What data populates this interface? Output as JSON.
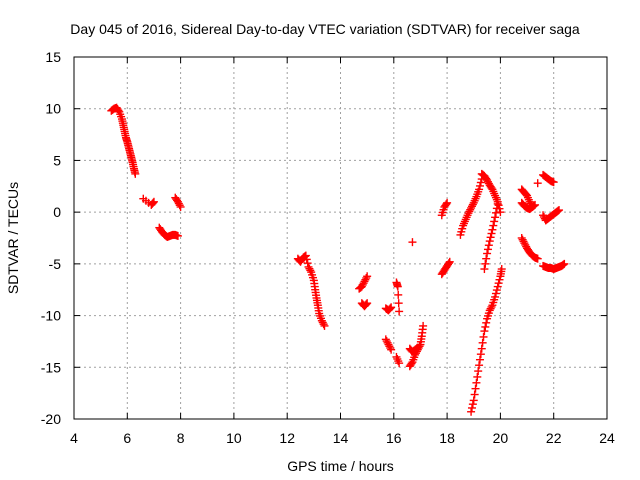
{
  "chart_data": {
    "type": "scatter",
    "title": "Day 045 of 2016, Sidereal Day-to-day VTEC variation (SDTVAR) for receiver saga",
    "xlabel": "GPS time / hours",
    "ylabel": "SDTVAR / TECUs",
    "xlim": [
      4,
      24
    ],
    "ylim": [
      -20,
      15
    ],
    "xticks": [
      4,
      6,
      8,
      10,
      12,
      14,
      16,
      18,
      20,
      22,
      24
    ],
    "yticks": [
      -20,
      -15,
      -10,
      -5,
      0,
      5,
      10,
      15
    ],
    "grid": true,
    "marker": "+",
    "series_color": "#ff0000",
    "segments": [
      {
        "x": [
          5.4,
          5.5,
          5.6,
          5.7,
          5.8,
          5.85,
          5.9,
          5.95,
          6.0,
          6.05,
          6.1,
          6.15,
          6.2,
          6.25,
          6.3
        ],
        "y": [
          9.8,
          10.0,
          10.1,
          9.7,
          9.0,
          8.4,
          7.8,
          7.2,
          6.8,
          6.3,
          5.8,
          5.3,
          4.8,
          4.2,
          3.7
        ]
      },
      {
        "x": [
          6.6,
          6.9,
          7.0
        ],
        "y": [
          1.3,
          0.7,
          1.0
        ]
      },
      {
        "x": [
          7.2,
          7.3,
          7.4,
          7.5,
          7.6,
          7.7,
          7.8,
          7.9
        ],
        "y": [
          -1.5,
          -1.9,
          -2.2,
          -2.4,
          -2.3,
          -2.2,
          -2.2,
          -2.3
        ]
      },
      {
        "x": [
          7.8,
          7.9,
          8.0
        ],
        "y": [
          1.4,
          1.0,
          0.5
        ]
      },
      {
        "x": [
          12.4,
          12.5,
          12.6,
          12.7,
          12.8,
          12.9,
          13.0,
          13.05,
          13.1,
          13.15,
          13.2,
          13.3,
          13.4
        ],
        "y": [
          -4.5,
          -4.8,
          -4.4,
          -4.2,
          -5.3,
          -5.8,
          -6.6,
          -7.5,
          -8.3,
          -9.0,
          -9.8,
          -10.5,
          -11.0
        ]
      },
      {
        "x": [
          14.7,
          14.8,
          14.9,
          15.0
        ],
        "y": [
          -7.4,
          -7.2,
          -6.7,
          -6.2
        ]
      },
      {
        "x": [
          14.8,
          14.9,
          15.0
        ],
        "y": [
          -8.8,
          -9.1,
          -8.8
        ]
      },
      {
        "x": [
          15.7,
          15.8,
          15.9
        ],
        "y": [
          -9.3,
          -9.5,
          -9.2
        ]
      },
      {
        "x": [
          15.7,
          15.8,
          15.9
        ],
        "y": [
          -12.3,
          -12.8,
          -13.3
        ]
      },
      {
        "x": [
          16.1,
          16.15,
          16.2
        ],
        "y": [
          -6.8,
          -7.2,
          -9.6
        ]
      },
      {
        "x": [
          16.1,
          16.2
        ],
        "y": [
          -14.0,
          -14.6
        ]
      },
      {
        "x": [
          16.7
        ],
        "y": [
          -2.9
        ]
      },
      {
        "x": [
          16.6,
          16.7,
          16.8,
          16.9,
          17.0,
          17.05,
          17.1
        ],
        "y": [
          -14.9,
          -14.5,
          -13.8,
          -13.3,
          -12.8,
          -12.0,
          -11.0
        ]
      },
      {
        "x": [
          16.6,
          16.7,
          16.8,
          16.9
        ],
        "y": [
          -13.2,
          -13.5,
          -13.3,
          -13.1
        ]
      },
      {
        "x": [
          17.8,
          17.9,
          18.0,
          18.1
        ],
        "y": [
          -6.0,
          -5.6,
          -5.2,
          -4.8
        ]
      },
      {
        "x": [
          17.8,
          17.9,
          18.0
        ],
        "y": [
          -0.3,
          0.5,
          0.9
        ]
      },
      {
        "x": [
          18.5,
          18.6,
          18.7,
          18.8,
          18.9,
          19.0,
          19.1,
          19.2,
          19.3
        ],
        "y": [
          -2.2,
          -1.3,
          -0.7,
          -0.1,
          0.4,
          0.9,
          1.5,
          2.2,
          3.2
        ]
      },
      {
        "x": [
          18.9,
          19.0,
          19.1,
          19.2,
          19.3,
          19.4,
          19.5,
          19.6,
          19.7,
          19.8,
          19.9,
          20.0,
          20.05
        ],
        "y": [
          -19.3,
          -18.2,
          -16.5,
          -14.8,
          -13.2,
          -11.5,
          -10.3,
          -9.5,
          -9.0,
          -8.2,
          -7.2,
          -6.2,
          -5.5
        ]
      },
      {
        "x": [
          19.4,
          19.5,
          19.6,
          19.7,
          19.8,
          19.9
        ],
        "y": [
          -5.5,
          -4.0,
          -2.8,
          -1.7,
          -0.5,
          0.8
        ]
      },
      {
        "x": [
          19.3,
          19.4,
          19.5,
          19.6,
          19.7,
          19.8,
          19.9,
          20.0
        ],
        "y": [
          3.7,
          3.5,
          3.1,
          2.6,
          2.2,
          1.6,
          1.0,
          0.0
        ]
      },
      {
        "x": [
          20.8,
          20.9,
          21.0,
          21.1,
          21.2
        ],
        "y": [
          2.2,
          1.9,
          1.6,
          1.0,
          0.5
        ]
      },
      {
        "x": [
          20.8,
          20.9,
          21.0,
          21.1,
          21.2,
          21.3
        ],
        "y": [
          0.9,
          0.6,
          0.4,
          0.3,
          0.5,
          0.7
        ]
      },
      {
        "x": [
          20.8,
          20.9,
          21.0,
          21.1,
          21.2,
          21.3,
          21.4
        ],
        "y": [
          -2.5,
          -3.0,
          -3.5,
          -3.9,
          -4.2,
          -4.4,
          -4.5
        ]
      },
      {
        "x": [
          21.4
        ],
        "y": [
          2.8
        ]
      },
      {
        "x": [
          21.6,
          21.7,
          21.8,
          21.9,
          22.0
        ],
        "y": [
          3.6,
          3.4,
          3.2,
          3.0,
          2.9
        ]
      },
      {
        "x": [
          21.6,
          21.7,
          21.8,
          21.9,
          22.0,
          22.1,
          22.2
        ],
        "y": [
          -0.3,
          -0.8,
          -0.6,
          -0.4,
          -0.2,
          0.0,
          0.2
        ]
      },
      {
        "x": [
          21.6,
          21.7,
          21.8,
          21.9,
          22.0,
          22.1,
          22.2,
          22.3,
          22.4
        ],
        "y": [
          -5.2,
          -5.3,
          -5.4,
          -5.4,
          -5.5,
          -5.4,
          -5.3,
          -5.2,
          -5.0
        ]
      }
    ]
  }
}
